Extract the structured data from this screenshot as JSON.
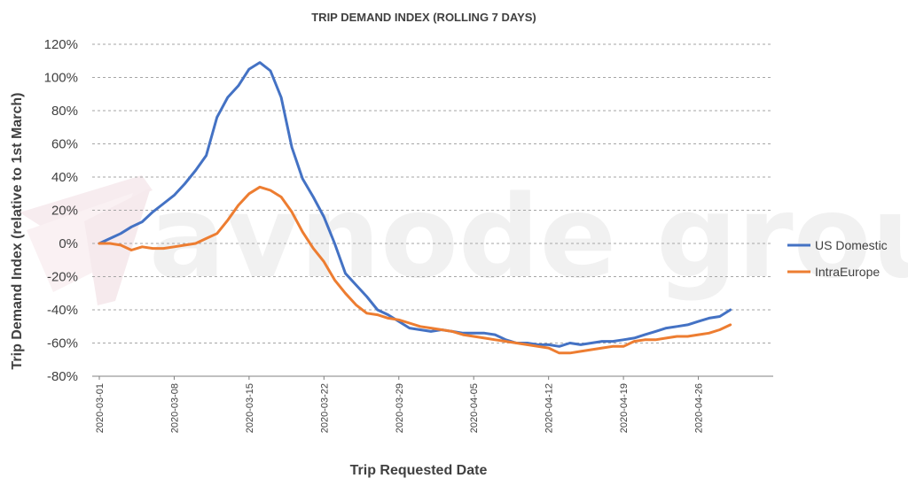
{
  "chart_data": {
    "type": "line",
    "title": "TRIP DEMAND INDEX (ROLLING 7 DAYS)",
    "xlabel": "Trip Requested Date",
    "ylabel": "Trip Demand Index (relative to 1st March)",
    "ylim": [
      -80,
      120
    ],
    "yticks": [
      "120%",
      "100%",
      "80%",
      "60%",
      "40%",
      "20%",
      "0%",
      "-20%",
      "-40%",
      "-60%",
      "-80%"
    ],
    "ytick_values": [
      120,
      100,
      80,
      60,
      40,
      20,
      0,
      -20,
      -40,
      -60,
      -80
    ],
    "xticks": [
      "2020-03-01",
      "2020-03-08",
      "2020-03-15",
      "2020-03-22",
      "2020-03-29",
      "2020-04-05",
      "2020-04-12",
      "2020-04-19",
      "2020-04-26"
    ],
    "xtick_days": [
      0,
      7,
      14,
      21,
      28,
      35,
      42,
      49,
      56
    ],
    "grid": true,
    "legend_position": "right",
    "series": [
      {
        "name": "US Domestic",
        "color": "#4472C4",
        "days": [
          0,
          1,
          2,
          3,
          4,
          5,
          6,
          7,
          8,
          9,
          10,
          11,
          12,
          13,
          14,
          15,
          16,
          17,
          18,
          19,
          20,
          21,
          22,
          23,
          24,
          25,
          26,
          27,
          28,
          29,
          30,
          31,
          32,
          33,
          34,
          35,
          36,
          37,
          38,
          39,
          40,
          41,
          42,
          43,
          44,
          45,
          46,
          47,
          48,
          49,
          50,
          51,
          52,
          53,
          54,
          55,
          56,
          57,
          58,
          59
        ],
        "values": [
          0,
          3,
          6,
          10,
          13,
          19,
          24,
          29,
          36,
          44,
          53,
          76,
          88,
          95,
          105,
          109,
          104,
          88,
          58,
          39,
          28,
          16,
          0,
          -18,
          -25,
          -32,
          -40,
          -43,
          -47,
          -51,
          -52,
          -53,
          -52,
          -53,
          -54,
          -54,
          -54,
          -55,
          -58,
          -60,
          -60,
          -61,
          -61,
          -62,
          -60,
          -61,
          -60,
          -59,
          -59,
          -58,
          -57,
          -55,
          -53,
          -51,
          -50,
          -49,
          -47,
          -45,
          -44,
          -40
        ]
      },
      {
        "name": "IntraEurope",
        "color": "#ED7D31",
        "days": [
          0,
          1,
          2,
          3,
          4,
          5,
          6,
          7,
          8,
          9,
          10,
          11,
          12,
          13,
          14,
          15,
          16,
          17,
          18,
          19,
          20,
          21,
          22,
          23,
          24,
          25,
          26,
          27,
          28,
          29,
          30,
          31,
          32,
          33,
          34,
          35,
          36,
          37,
          38,
          39,
          40,
          41,
          42,
          43,
          44,
          45,
          46,
          47,
          48,
          49,
          50,
          51,
          52,
          53,
          54,
          55,
          56,
          57,
          58,
          59
        ],
        "values": [
          0,
          0,
          -1,
          -4,
          -2,
          -3,
          -3,
          -2,
          -1,
          0,
          3,
          6,
          14,
          23,
          30,
          34,
          32,
          28,
          19,
          7,
          -3,
          -11,
          -22,
          -30,
          -37,
          -42,
          -43,
          -45,
          -46,
          -48,
          -50,
          -51,
          -52,
          -53,
          -55,
          -56,
          -57,
          -58,
          -59,
          -60,
          -61,
          -62,
          -63,
          -66,
          -66,
          -65,
          -64,
          -63,
          -62,
          -62,
          -59,
          -58,
          -58,
          -57,
          -56,
          -56,
          -55,
          -54,
          -52,
          -49
        ]
      }
    ]
  },
  "watermark": {
    "text": "avnode group"
  }
}
